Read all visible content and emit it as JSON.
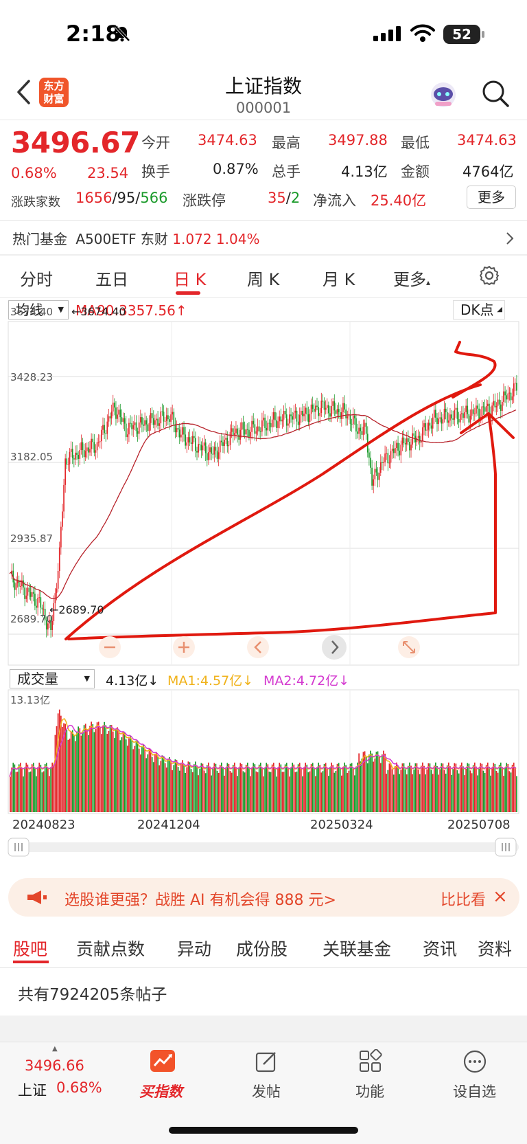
{
  "status_bar": {
    "time": "2:18",
    "battery": "52"
  },
  "header": {
    "title": "上证指数",
    "code": "000001",
    "logo_text": [
      "东方",
      "财富"
    ]
  },
  "quote": {
    "price": "3496.67",
    "change_pct": "0.68%",
    "change": "23.54",
    "open_label": "今开",
    "open": "3474.63",
    "high_label": "最高",
    "high": "3497.88",
    "low_label": "最低",
    "low": "3474.63",
    "turnover_label": "换手",
    "turnover": "0.87%",
    "volume_label": "总手",
    "volume": "4.13亿",
    "amount_label": "金额",
    "amount": "4764亿",
    "breadth_label": "涨跌家数",
    "up": "1656",
    "flat": "95",
    "down": "566",
    "limit_label": "涨跌停",
    "limit_up": "35",
    "limit_down": "2",
    "netflow_label": "净流入",
    "netflow": "25.40亿",
    "more_label": "更多"
  },
  "hot_fund": {
    "label": "热门基金",
    "name": "A500ETF 东财",
    "price": "1.072",
    "pct": "1.04%"
  },
  "tabs": [
    "分时",
    "五日",
    "日 K",
    "周 K",
    "月 K",
    "更多"
  ],
  "chart_controls": {
    "ma_select": "均线",
    "ma90": "MA90:3357.56",
    "dk": "DK点",
    "vol_select": "成交量",
    "vol_value": "4.13亿",
    "vol_ma1": "MA1:4.57亿",
    "vol_ma2": "MA2:4.72亿",
    "vol_max": "13.13亿",
    "hi_marker": "3674.40",
    "lo_marker": "2689.70"
  },
  "chart_data": {
    "type": "candlestick",
    "y_ticks": [
      "3674.40",
      "3428.23",
      "3182.05",
      "2935.87",
      "2689.70"
    ],
    "ylim": [
      2689.7,
      3674.4
    ],
    "x_ticks": [
      "20240823",
      "20241204",
      "20250324",
      "20250708"
    ],
    "series": [
      {
        "name": "MA90",
        "last": 3357.56
      }
    ],
    "annotations": [
      "3674.40",
      "2689.70"
    ]
  },
  "banner": {
    "text": "选股谁更强？战胜 AI 有机会得 888 元>",
    "right": "比比看"
  },
  "bottom_tabs": [
    "股吧",
    "贡献点数",
    "异动",
    "成份股",
    "关联基金",
    "资讯",
    "资料"
  ],
  "posts_text": "共有7924205条帖子",
  "nav": {
    "index_price": "3496.66",
    "index_name": "上证",
    "index_pct": "0.68%",
    "items": [
      "买指数",
      "发帖",
      "功能",
      "设自选"
    ]
  }
}
